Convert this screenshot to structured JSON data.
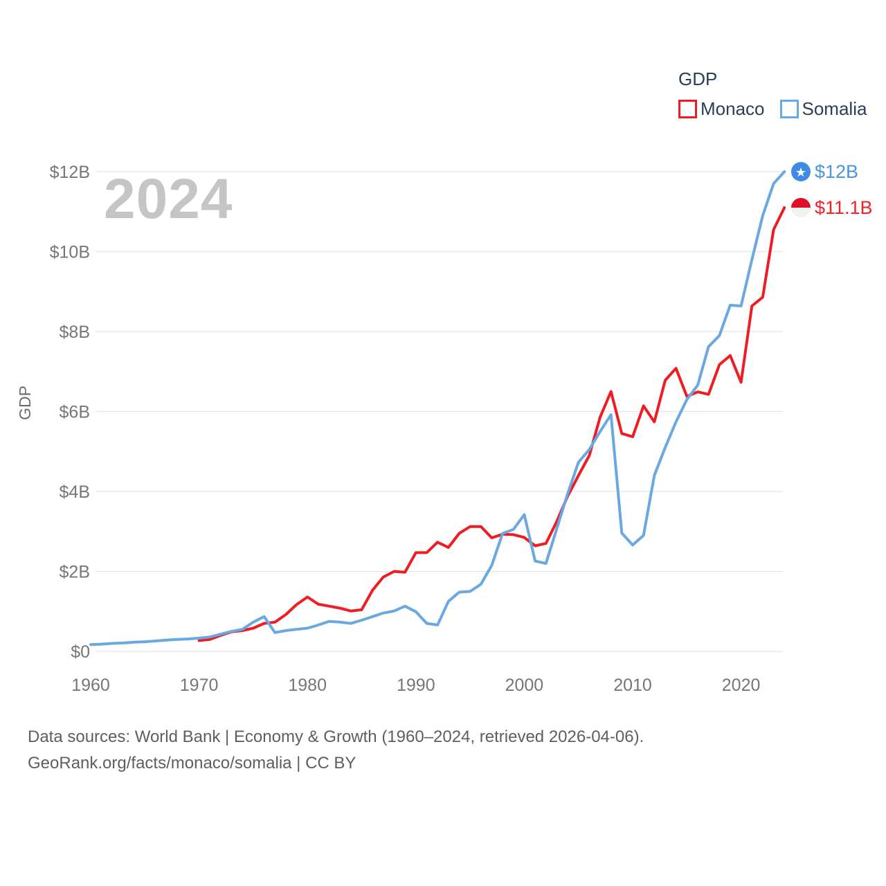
{
  "legend": {
    "title": "GDP",
    "items": [
      {
        "id": "monaco",
        "label": "Monaco",
        "color": "#EE1D23"
      },
      {
        "id": "somalia",
        "label": "Somalia",
        "color": "#6AA8E2"
      }
    ]
  },
  "watermark": "2024",
  "footer": {
    "line1": "Data sources: World Bank | Economy & Growth (1960–2024, retrieved 2026-04-06).",
    "line2": "GeoRank.org/facts/monaco/somalia | CC BY"
  },
  "chart_data": {
    "type": "line",
    "title": "GDP",
    "xlabel": "",
    "ylabel": "GDP",
    "ylim": [
      0,
      12.5
    ],
    "grid": true,
    "legend_position": "top-right",
    "yticks": [
      {
        "v": 0,
        "label": "$0"
      },
      {
        "v": 2,
        "label": "$2B"
      },
      {
        "v": 4,
        "label": "$4B"
      },
      {
        "v": 6,
        "label": "$6B"
      },
      {
        "v": 8,
        "label": "$8B"
      },
      {
        "v": 10,
        "label": "$10B"
      },
      {
        "v": 12,
        "label": "$12B"
      }
    ],
    "xticks": [
      1960,
      1970,
      1980,
      1990,
      2000,
      2010,
      2020
    ],
    "x": [
      1960,
      1961,
      1962,
      1963,
      1964,
      1965,
      1966,
      1967,
      1968,
      1969,
      1970,
      1971,
      1972,
      1973,
      1974,
      1975,
      1976,
      1977,
      1978,
      1979,
      1980,
      1981,
      1982,
      1983,
      1984,
      1985,
      1986,
      1987,
      1988,
      1989,
      1990,
      1991,
      1992,
      1993,
      1994,
      1995,
      1996,
      1997,
      1998,
      1999,
      2000,
      2001,
      2002,
      2003,
      2004,
      2005,
      2006,
      2007,
      2008,
      2009,
      2010,
      2011,
      2012,
      2013,
      2014,
      2015,
      2016,
      2017,
      2018,
      2019,
      2020,
      2021,
      2022,
      2023,
      2024
    ],
    "series": [
      {
        "name": "Monaco",
        "color": "#EE1D23",
        "flag": "monaco",
        "flag_colors": {
          "top": "#DE1126",
          "bottom": "#F2F2F2"
        },
        "end_label": "$11.1B",
        "end_label_color": "#F32025",
        "values": [
          null,
          null,
          null,
          null,
          null,
          null,
          null,
          null,
          null,
          null,
          0.27,
          0.3,
          0.4,
          0.49,
          0.52,
          0.58,
          0.7,
          0.73,
          0.92,
          1.17,
          1.36,
          1.18,
          1.13,
          1.08,
          1.01,
          1.04,
          1.53,
          1.86,
          2.0,
          1.98,
          2.47,
          2.47,
          2.73,
          2.6,
          2.95,
          3.12,
          3.12,
          2.84,
          2.93,
          2.92,
          2.85,
          2.64,
          2.7,
          3.25,
          3.88,
          4.4,
          4.9,
          5.86,
          6.5,
          5.45,
          5.37,
          6.14,
          5.74,
          6.78,
          7.08,
          6.38,
          6.49,
          6.43,
          7.17,
          7.4,
          6.73,
          8.64,
          8.86,
          10.55,
          11.1
        ]
      },
      {
        "name": "Somalia",
        "color": "#6AA8E2",
        "flag": "somalia",
        "flag_colors": {
          "circle": "#3E8AE4",
          "star": "#FFFFFF"
        },
        "end_label": "$12B",
        "end_label_color": "#4A94E0",
        "values": [
          0.17,
          0.18,
          0.2,
          0.21,
          0.23,
          0.24,
          0.26,
          0.28,
          0.3,
          0.31,
          0.33,
          0.36,
          0.43,
          0.5,
          0.55,
          0.73,
          0.87,
          0.47,
          0.52,
          0.55,
          0.58,
          0.66,
          0.75,
          0.73,
          0.7,
          0.78,
          0.87,
          0.96,
          1.01,
          1.13,
          0.99,
          0.7,
          0.66,
          1.25,
          1.48,
          1.5,
          1.68,
          2.15,
          2.95,
          3.05,
          3.42,
          2.26,
          2.2,
          3.07,
          3.94,
          4.73,
          5.05,
          5.5,
          5.92,
          2.96,
          2.66,
          2.9,
          4.4,
          5.1,
          5.74,
          6.3,
          6.66,
          7.62,
          7.9,
          8.66,
          8.64,
          9.8,
          10.9,
          11.7,
          12.0
        ]
      }
    ]
  }
}
